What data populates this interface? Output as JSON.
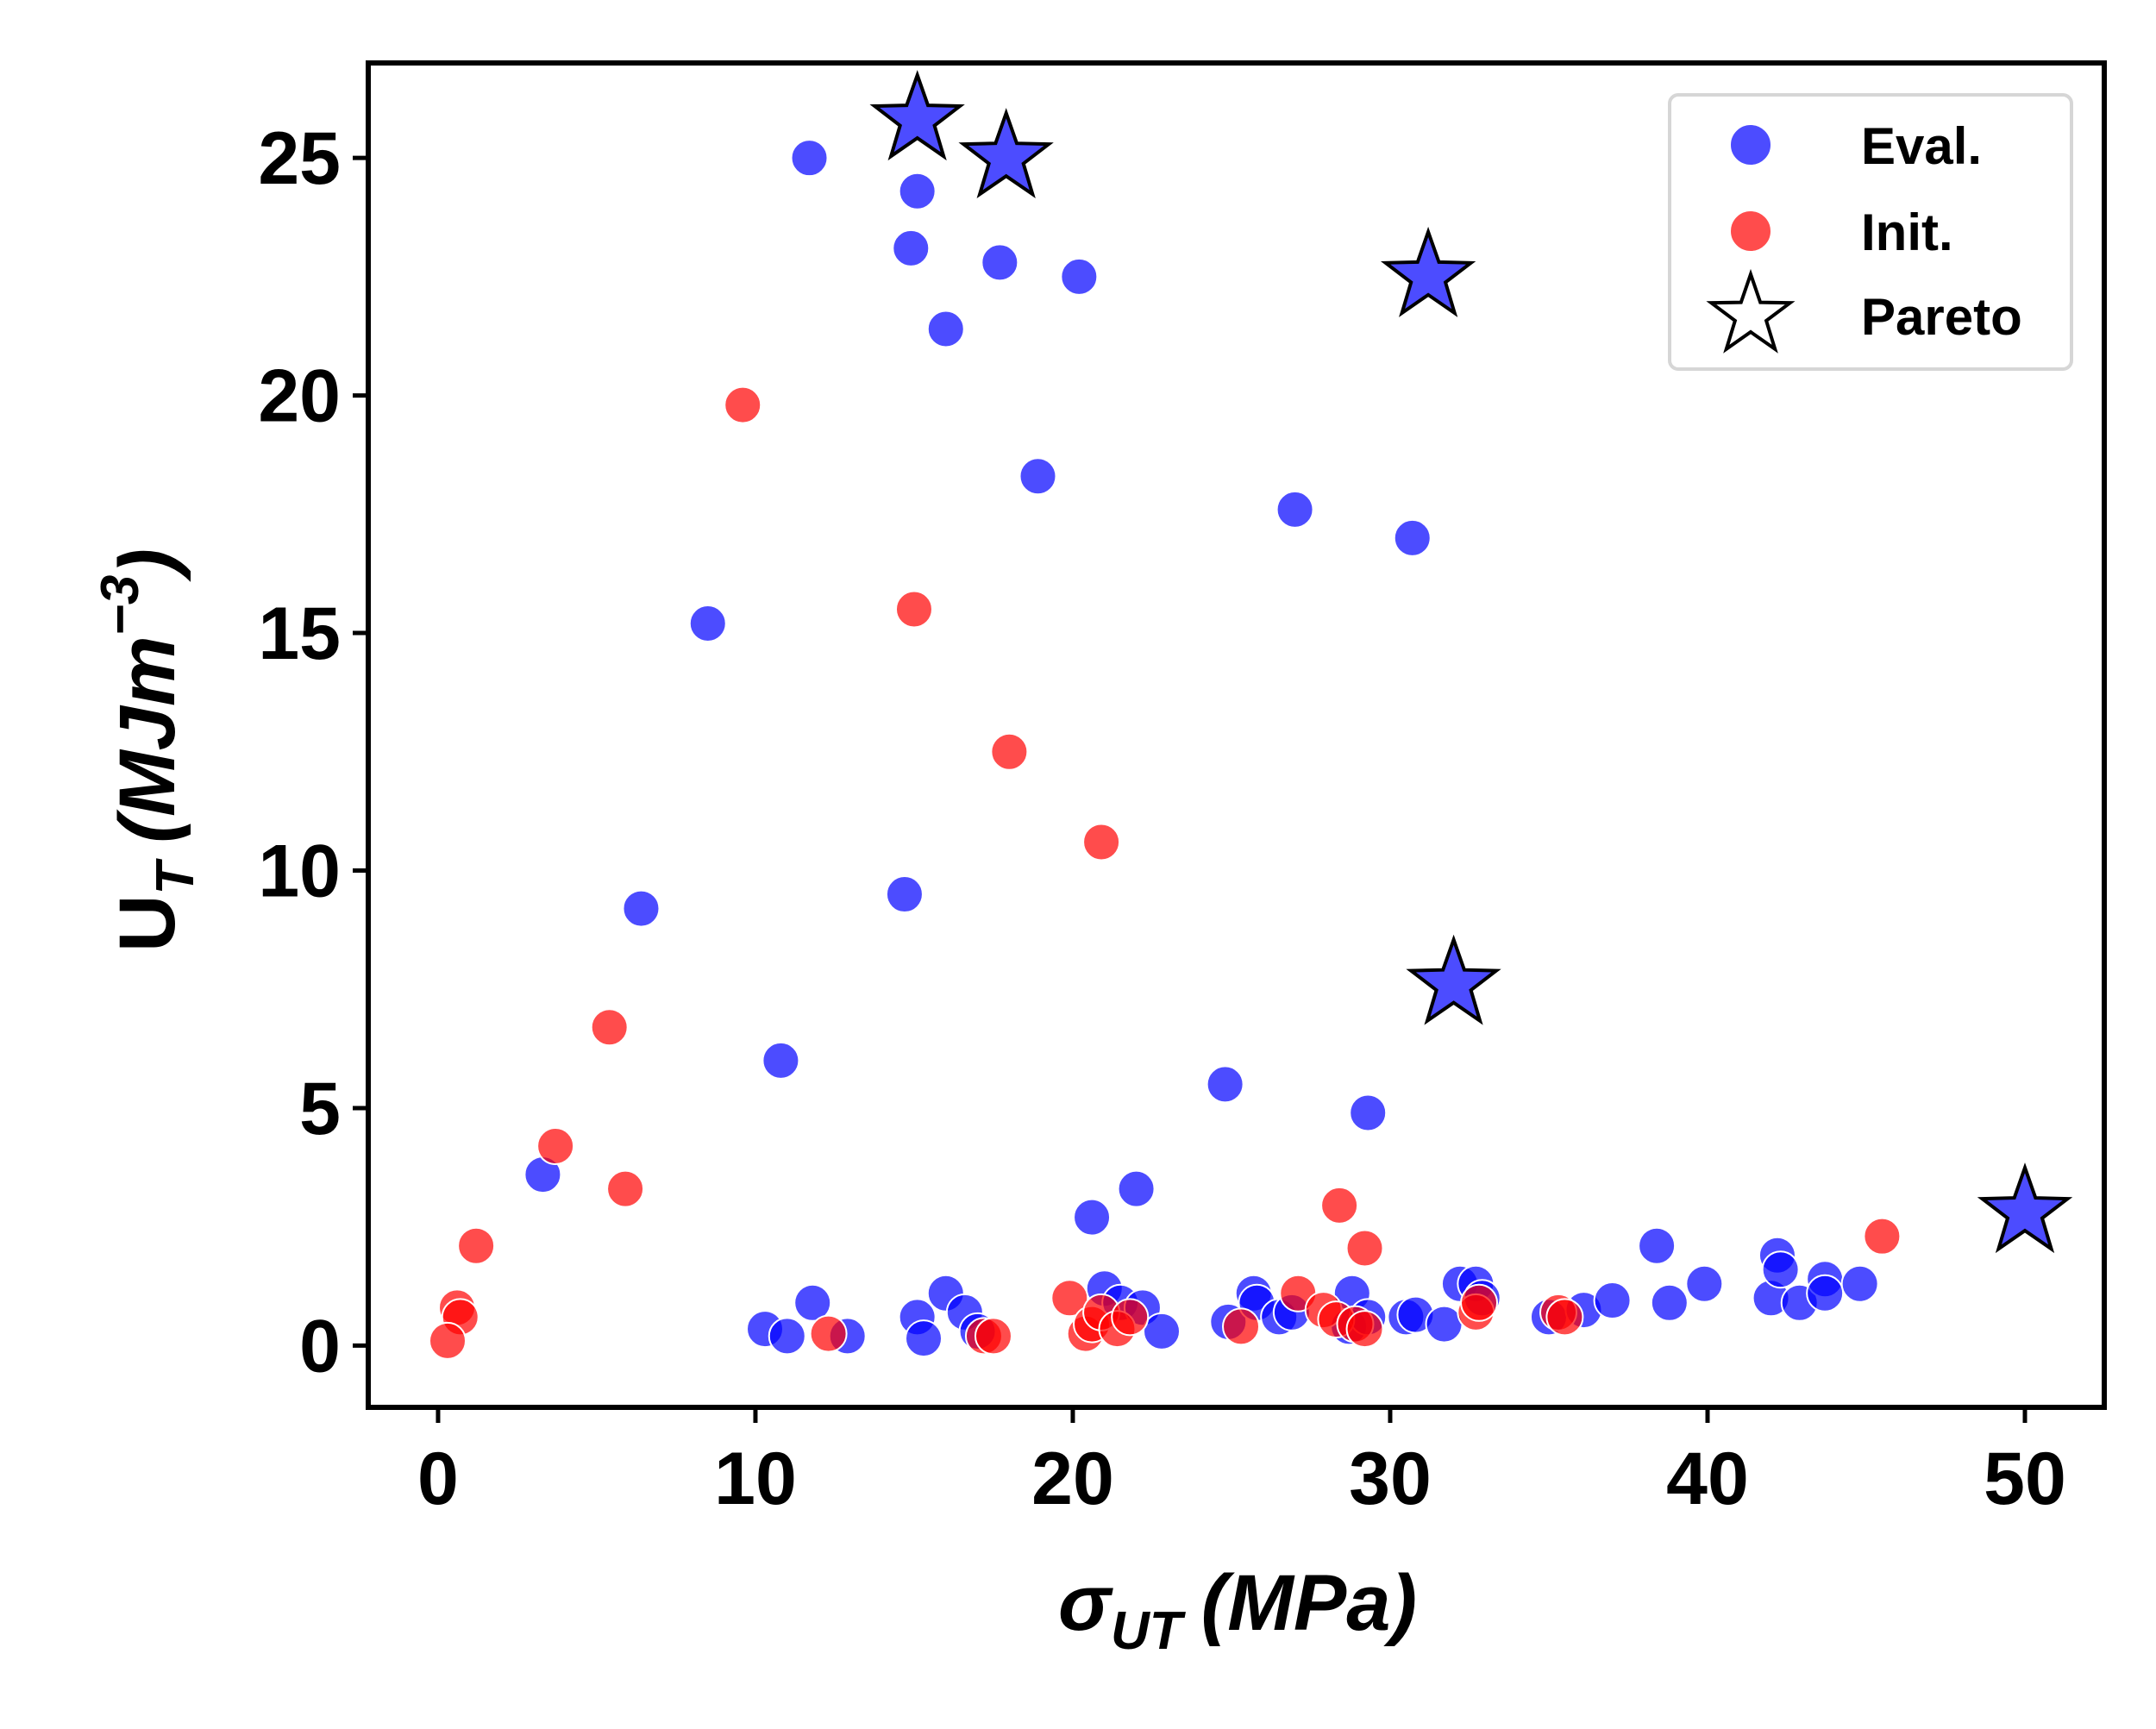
{
  "chart_data": {
    "type": "scatter",
    "xlabel_main": "σ",
    "xlabel_sub": "UT",
    "xlabel_unit": "(MPa)",
    "ylabel_main": "U",
    "ylabel_sub": "T",
    "ylabel_unit_open": "(MJm",
    "ylabel_unit_exp": "−3",
    "ylabel_unit_close": ")",
    "xlim": [
      -2.2,
      52.5
    ],
    "ylim": [
      -1.3,
      27.0
    ],
    "xticks": [
      0,
      10,
      20,
      30,
      40,
      50
    ],
    "yticks": [
      0,
      5,
      10,
      15,
      20,
      25
    ],
    "grid": false,
    "legend_position": "top-right",
    "series": [
      {
        "name": "Eval.",
        "marker": "circle",
        "color": "#0000ff",
        "opacity": 0.7,
        "points": [
          [
            11.7,
            25.0
          ],
          [
            15.1,
            24.3
          ],
          [
            14.9,
            23.1
          ],
          [
            17.7,
            22.8
          ],
          [
            20.2,
            22.5
          ],
          [
            16.0,
            21.4
          ],
          [
            18.9,
            18.3
          ],
          [
            27.0,
            17.6
          ],
          [
            30.7,
            17.0
          ],
          [
            8.5,
            15.2
          ],
          [
            14.7,
            9.5
          ],
          [
            6.4,
            9.2
          ],
          [
            10.8,
            6.0
          ],
          [
            24.8,
            5.5
          ],
          [
            29.3,
            4.9
          ],
          [
            3.3,
            3.6
          ],
          [
            22.0,
            3.3
          ],
          [
            20.6,
            2.7
          ],
          [
            38.4,
            2.1
          ],
          [
            42.2,
            1.9
          ],
          [
            10.3,
            0.35
          ],
          [
            11.0,
            0.2
          ],
          [
            11.8,
            0.9
          ],
          [
            12.9,
            0.2
          ],
          [
            15.1,
            0.6
          ],
          [
            15.3,
            0.15
          ],
          [
            16.0,
            1.1
          ],
          [
            16.6,
            0.7
          ],
          [
            17.0,
            0.3
          ],
          [
            21.0,
            1.2
          ],
          [
            21.5,
            0.9
          ],
          [
            22.2,
            0.8
          ],
          [
            22.8,
            0.3
          ],
          [
            24.9,
            0.5
          ],
          [
            25.7,
            1.1
          ],
          [
            25.8,
            0.9
          ],
          [
            26.5,
            0.6
          ],
          [
            26.9,
            0.7
          ],
          [
            28.8,
            1.1
          ],
          [
            28.7,
            0.4
          ],
          [
            29.3,
            0.6
          ],
          [
            30.5,
            0.6
          ],
          [
            30.8,
            0.65
          ],
          [
            31.7,
            0.45
          ],
          [
            32.2,
            1.3
          ],
          [
            32.7,
            1.3
          ],
          [
            32.9,
            1.0
          ],
          [
            35.0,
            0.6
          ],
          [
            36.1,
            0.75
          ],
          [
            37.0,
            0.95
          ],
          [
            38.8,
            0.9
          ],
          [
            39.9,
            1.3
          ],
          [
            42.0,
            1.0
          ],
          [
            42.3,
            1.6
          ],
          [
            42.9,
            0.9
          ],
          [
            43.7,
            1.4
          ],
          [
            43.7,
            1.1
          ],
          [
            44.8,
            1.3
          ]
        ]
      },
      {
        "name": "Init.",
        "marker": "circle",
        "color": "#ff0000",
        "opacity": 0.7,
        "points": [
          [
            9.6,
            19.8
          ],
          [
            15.0,
            15.5
          ],
          [
            18.0,
            12.5
          ],
          [
            20.9,
            10.6
          ],
          [
            5.4,
            6.7
          ],
          [
            3.7,
            4.2
          ],
          [
            5.9,
            3.3
          ],
          [
            28.4,
            2.95
          ],
          [
            29.2,
            2.05
          ],
          [
            1.2,
            2.1
          ],
          [
            45.5,
            2.3
          ],
          [
            0.6,
            0.8
          ],
          [
            0.7,
            0.6
          ],
          [
            0.3,
            0.1
          ],
          [
            12.3,
            0.25
          ],
          [
            17.2,
            0.2
          ],
          [
            17.5,
            0.2
          ],
          [
            19.9,
            1.0
          ],
          [
            20.4,
            0.25
          ],
          [
            20.6,
            0.45
          ],
          [
            20.9,
            0.7
          ],
          [
            21.4,
            0.35
          ],
          [
            21.8,
            0.6
          ],
          [
            25.3,
            0.4
          ],
          [
            27.1,
            1.1
          ],
          [
            27.9,
            0.75
          ],
          [
            28.3,
            0.55
          ],
          [
            28.9,
            0.45
          ],
          [
            29.2,
            0.35
          ],
          [
            32.7,
            0.7
          ],
          [
            32.8,
            0.9
          ],
          [
            35.3,
            0.7
          ],
          [
            35.5,
            0.6
          ]
        ]
      },
      {
        "name": "Pareto",
        "marker": "star",
        "color": "#0000ff",
        "opacity": 0.7,
        "points": [
          [
            15.1,
            25.8
          ],
          [
            17.9,
            25.0
          ],
          [
            31.2,
            22.5
          ],
          [
            32.0,
            7.6
          ],
          [
            50.0,
            2.8
          ]
        ]
      }
    ]
  },
  "legend": {
    "items": [
      {
        "label": "Eval.",
        "marker": "circle",
        "color": "#0000ff"
      },
      {
        "label": "Init.",
        "marker": "circle",
        "color": "#ff0000"
      },
      {
        "label": "Pareto",
        "marker": "star-outline",
        "color": "#000000"
      }
    ]
  }
}
